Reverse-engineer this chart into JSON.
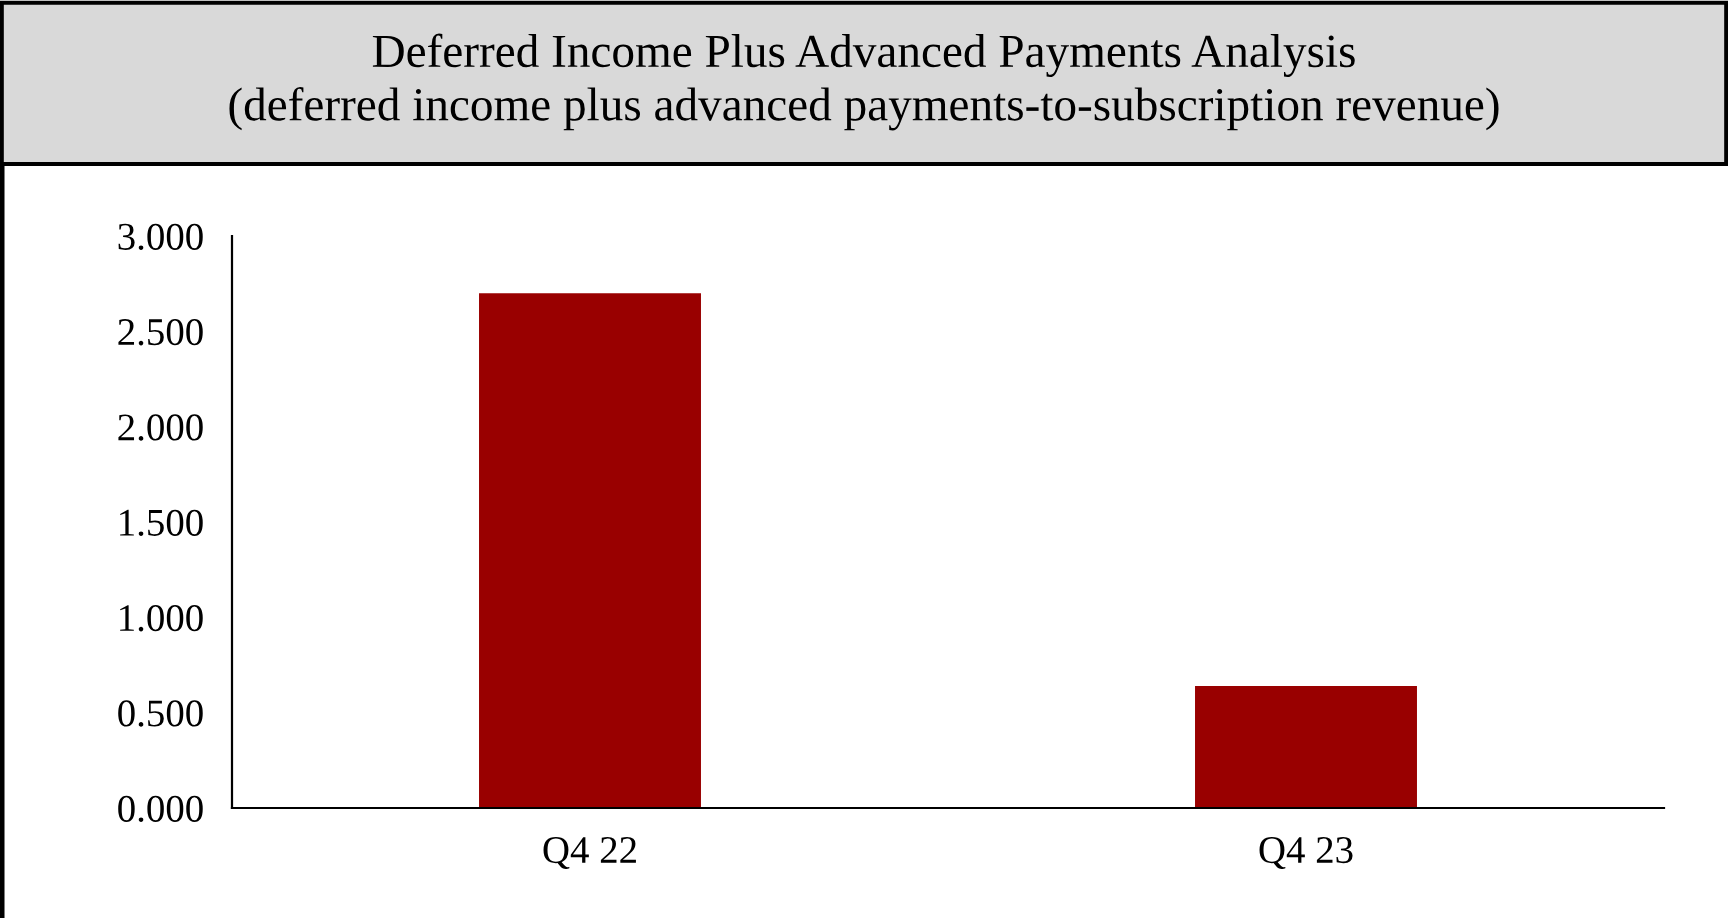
{
  "chart_data": {
    "type": "bar",
    "title": "Deferred Income Plus Advanced Payments Analysis\n(deferred income plus advanced payments-to-subscription revenue)",
    "categories": [
      "Q4 22",
      "Q4 23"
    ],
    "values": [
      2.7,
      0.64
    ],
    "color": "#990000",
    "ylim": [
      0,
      3
    ],
    "yticks": [
      {
        "value": 0,
        "label": "0.000"
      },
      {
        "value": 0.5,
        "label": "0.500"
      },
      {
        "value": 1,
        "label": "1.000"
      },
      {
        "value": 1.5,
        "label": "1.500"
      },
      {
        "value": 2,
        "label": "2.000"
      },
      {
        "value": 2.5,
        "label": "2.500"
      },
      {
        "value": 3,
        "label": "3.000"
      }
    ],
    "grid": false,
    "legend": false
  }
}
